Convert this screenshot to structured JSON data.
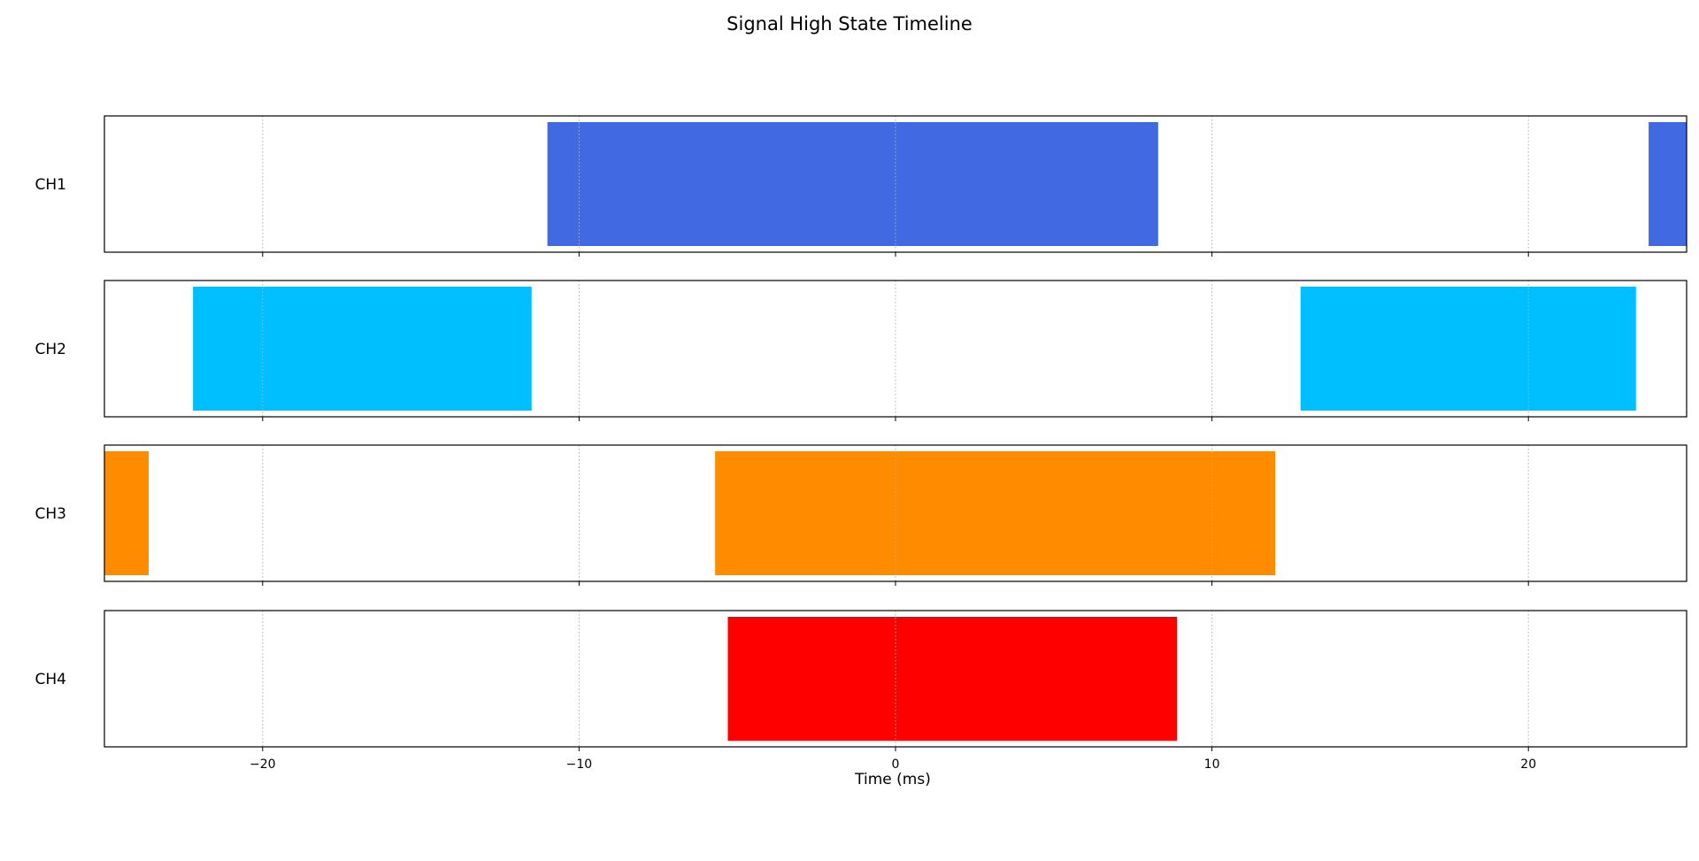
{
  "chart_data": {
    "type": "bar",
    "subtype": "broken-barh-timeline",
    "title": "Signal High State Timeline",
    "xlabel": "Time (ms)",
    "xlim": [
      -25,
      25
    ],
    "xticks": [
      -20,
      -10,
      0,
      10,
      20
    ],
    "xtick_labels": [
      "−20",
      "−10",
      "0",
      "10",
      "20"
    ],
    "grid": "x-dotted",
    "channels": [
      {
        "name": "CH1",
        "color": "#4169E1",
        "intervals": [
          [
            -11.0,
            8.3
          ],
          [
            23.8,
            25.0
          ]
        ]
      },
      {
        "name": "CH2",
        "color": "#00BFFF",
        "intervals": [
          [
            -22.2,
            -11.5
          ],
          [
            12.8,
            23.4
          ]
        ]
      },
      {
        "name": "CH3",
        "color": "#FF8C00",
        "intervals": [
          [
            -25.0,
            -23.6
          ],
          [
            -5.7,
            12.0
          ]
        ]
      },
      {
        "name": "CH4",
        "color": "#FF0000",
        "intervals": [
          [
            -5.3,
            8.9
          ]
        ]
      }
    ]
  }
}
